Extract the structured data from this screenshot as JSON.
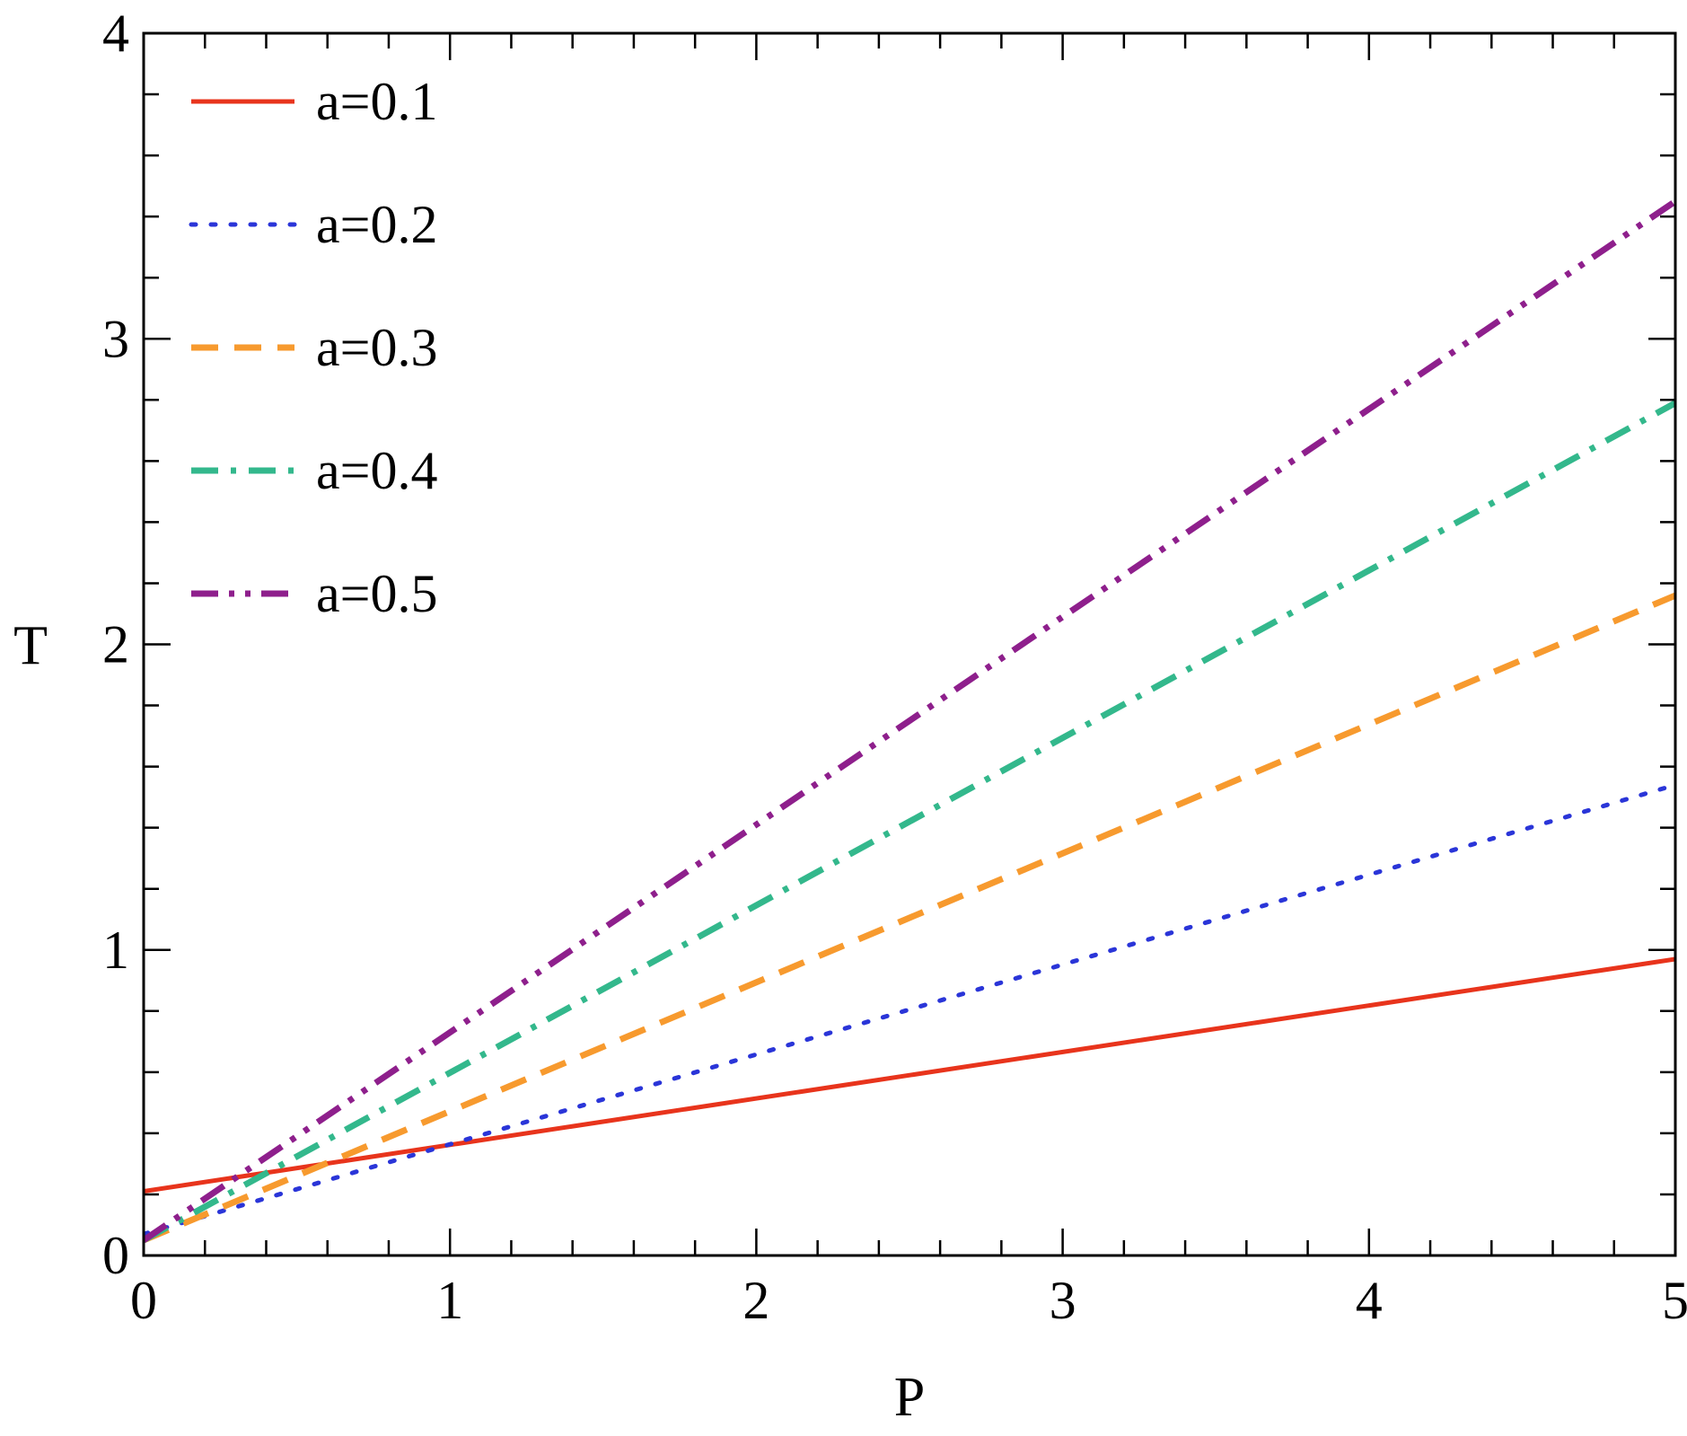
{
  "chart_data": {
    "type": "line",
    "title": "",
    "xlabel": "P",
    "ylabel": "T",
    "xlim": [
      0,
      5
    ],
    "ylim": [
      0,
      4
    ],
    "xticks": [
      "0",
      "1",
      "2",
      "3",
      "4",
      "5"
    ],
    "yticks": [
      "0",
      "1",
      "2",
      "3",
      "4"
    ],
    "grid": false,
    "legend_position": "top-left",
    "x": [
      0,
      5
    ],
    "series": [
      {
        "name": "a=0.1",
        "values": [
          0.21,
          0.97
        ],
        "color": "#e8341c",
        "style": "solid"
      },
      {
        "name": "a=0.2",
        "values": [
          0.07,
          1.54
        ],
        "color": "#2a35d8",
        "style": "dotted"
      },
      {
        "name": "a=0.3",
        "values": [
          0.05,
          2.16
        ],
        "color": "#f79a2e",
        "style": "dashed"
      },
      {
        "name": "a=0.4",
        "values": [
          0.05,
          2.79
        ],
        "color": "#33b88c",
        "style": "dash-dot"
      },
      {
        "name": "a=0.5",
        "values": [
          0.05,
          3.45
        ],
        "color": "#8e1f8c",
        "style": "dash-dot-dot"
      }
    ]
  }
}
